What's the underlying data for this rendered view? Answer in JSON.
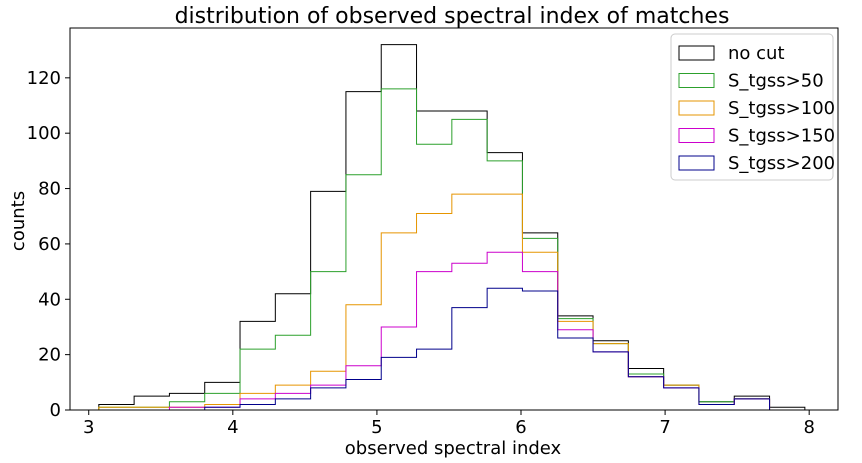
{
  "chart_data": {
    "type": "histogram-step",
    "title": "distribution of observed spectral index of matches",
    "xlabel": "observed spectral index",
    "ylabel": "counts",
    "xlim": [
      2.87,
      8.2
    ],
    "ylim": [
      0,
      138
    ],
    "xticks": [
      3,
      4,
      5,
      6,
      7,
      8
    ],
    "yticks": [
      0,
      20,
      40,
      60,
      80,
      100,
      120
    ],
    "legend_position": "top-right",
    "bin_edges": [
      3.07,
      3.315,
      3.56,
      3.805,
      4.05,
      4.295,
      4.54,
      4.785,
      5.03,
      5.275,
      5.52,
      5.765,
      6.01,
      6.255,
      6.5,
      6.745,
      6.99,
      7.235,
      7.48,
      7.725,
      7.97
    ],
    "series": [
      {
        "name": "no cut",
        "color": "#000000",
        "values": [
          2,
          5,
          6,
          10,
          32,
          42,
          79,
          115,
          132,
          108,
          108,
          93,
          64,
          34,
          25,
          15,
          9,
          3,
          5,
          1
        ]
      },
      {
        "name": "S_tgss>50",
        "color": "#2ca02c",
        "values": [
          1,
          1,
          3,
          6,
          22,
          27,
          50,
          85,
          116,
          96,
          105,
          90,
          62,
          33,
          24,
          13,
          9,
          3,
          4,
          0
        ]
      },
      {
        "name": "S_tgss>100",
        "color": "#e69500",
        "values": [
          1,
          1,
          1,
          2,
          6,
          9,
          14,
          38,
          64,
          71,
          78,
          78,
          57,
          32,
          24,
          12,
          9,
          2,
          4,
          0
        ]
      },
      {
        "name": "S_tgss>150",
        "color": "#cc00cc",
        "values": [
          0,
          0,
          1,
          1,
          4,
          6,
          9,
          16,
          30,
          50,
          53,
          57,
          50,
          29,
          21,
          12,
          8,
          2,
          4,
          0
        ]
      },
      {
        "name": "S_tgss>200",
        "color": "#00008b",
        "values": [
          0,
          0,
          0,
          1,
          2,
          4,
          8,
          11,
          19,
          22,
          37,
          44,
          43,
          26,
          21,
          12,
          8,
          2,
          4,
          0
        ]
      }
    ]
  }
}
